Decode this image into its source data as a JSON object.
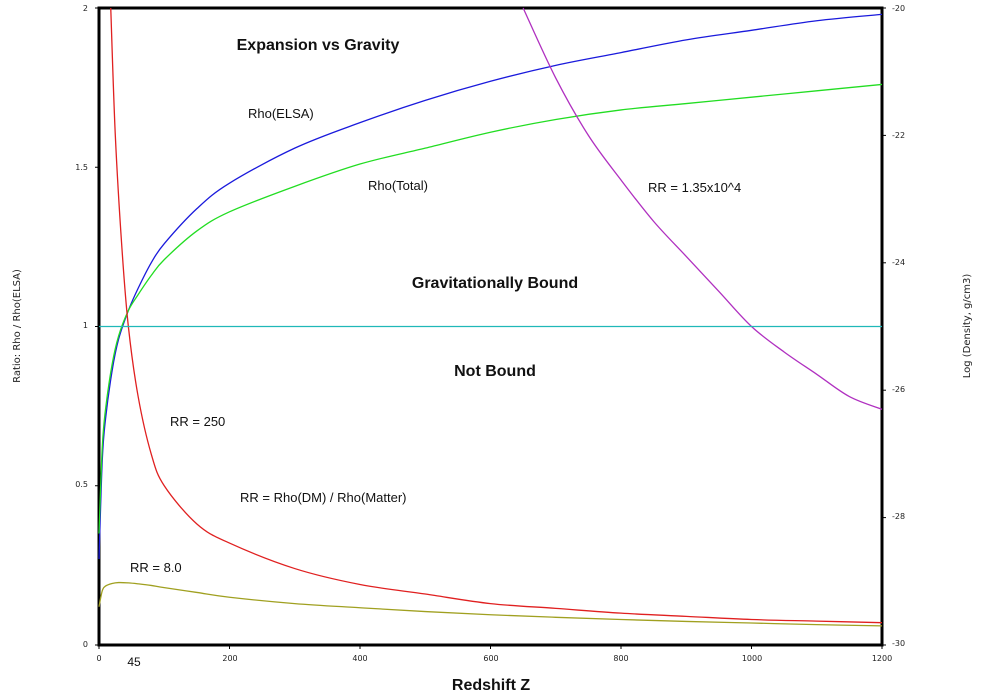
{
  "chart_data": {
    "type": "line",
    "title": "Expansion vs Gravity",
    "xlabel": "Redshift  Z",
    "ylabel": "Ratio:  Rho / Rho(ELSA)",
    "y2label": "Log (Density, g/cm3)",
    "xlim": [
      0,
      1200
    ],
    "ylim": [
      0,
      2
    ],
    "y2lim": [
      -30,
      -20
    ],
    "x_ticks": [
      "0",
      "200",
      "400",
      "600",
      "800",
      "1000",
      "1200"
    ],
    "x_marker": "45",
    "y_ticks": [
      "0",
      "0.5",
      "1",
      "1.5",
      "2"
    ],
    "y2_ticks": [
      "-20",
      "-22",
      "-24",
      "-26",
      "-28",
      "-30"
    ],
    "regions": {
      "upper": "Gravitationally Bound",
      "lower": "Not Bound"
    },
    "annotations": {
      "rho_elsa": "Rho(ELSA)",
      "rho_total": "Rho(Total)",
      "rr_250": "RR = 250",
      "rr_def": "RR = Rho(DM) / Rho(Matter)",
      "rr_8": "RR = 8.0",
      "rr_big": "RR = 1.35x10^4"
    },
    "series": [
      {
        "name": "Rho(ELSA)",
        "color": "#1a1adc",
        "x": [
          0,
          5,
          10,
          20,
          30,
          45,
          60,
          80,
          100,
          150,
          200,
          300,
          400,
          500,
          600,
          700,
          800,
          900,
          1000,
          1100,
          1200
        ],
        "y": [
          0.27,
          0.58,
          0.71,
          0.86,
          0.96,
          1.05,
          1.12,
          1.2,
          1.26,
          1.37,
          1.45,
          1.56,
          1.64,
          1.71,
          1.77,
          1.82,
          1.86,
          1.9,
          1.93,
          1.96,
          1.98
        ]
      },
      {
        "name": "Rho(Total)",
        "color": "#22dd22",
        "x": [
          0,
          5,
          10,
          20,
          30,
          45,
          60,
          80,
          100,
          150,
          200,
          300,
          400,
          500,
          600,
          700,
          800,
          900,
          1000,
          1100,
          1200
        ],
        "y": [
          0.35,
          0.62,
          0.74,
          0.88,
          0.97,
          1.05,
          1.1,
          1.16,
          1.21,
          1.3,
          1.36,
          1.44,
          1.51,
          1.56,
          1.61,
          1.65,
          1.68,
          1.7,
          1.72,
          1.74,
          1.76
        ]
      },
      {
        "name": "RR = 250",
        "color": "#e02020",
        "x": [
          18,
          25,
          35,
          45,
          60,
          80,
          100,
          150,
          200,
          300,
          400,
          500,
          600,
          700,
          800,
          900,
          1000,
          1100,
          1200
        ],
        "y": [
          2.0,
          1.6,
          1.25,
          1.0,
          0.78,
          0.6,
          0.5,
          0.38,
          0.32,
          0.24,
          0.19,
          0.16,
          0.13,
          0.115,
          0.1,
          0.09,
          0.08,
          0.075,
          0.07
        ]
      },
      {
        "name": "RR = 8.0",
        "color": "#a0a020",
        "x": [
          0,
          5,
          10,
          20,
          30,
          45,
          60,
          80,
          100,
          150,
          200,
          300,
          400,
          500,
          600,
          700,
          800,
          900,
          1000,
          1100,
          1200
        ],
        "y": [
          0.12,
          0.17,
          0.185,
          0.193,
          0.196,
          0.195,
          0.192,
          0.187,
          0.18,
          0.165,
          0.15,
          0.13,
          0.117,
          0.105,
          0.095,
          0.087,
          0.08,
          0.074,
          0.069,
          0.064,
          0.06
        ]
      },
      {
        "name": "RR = 1.35x10^4",
        "color": "#b030c0",
        "x": [
          650,
          700,
          750,
          800,
          850,
          900,
          950,
          1000,
          1050,
          1100,
          1150,
          1200
        ],
        "y": [
          2.0,
          1.78,
          1.6,
          1.46,
          1.33,
          1.22,
          1.11,
          1.0,
          0.92,
          0.85,
          0.78,
          0.74
        ]
      },
      {
        "name": "Rho / Rho(ELSA) = 1",
        "color": "#20b8b8",
        "x": [
          0,
          1200
        ],
        "y": [
          1.0,
          1.0
        ]
      }
    ]
  }
}
